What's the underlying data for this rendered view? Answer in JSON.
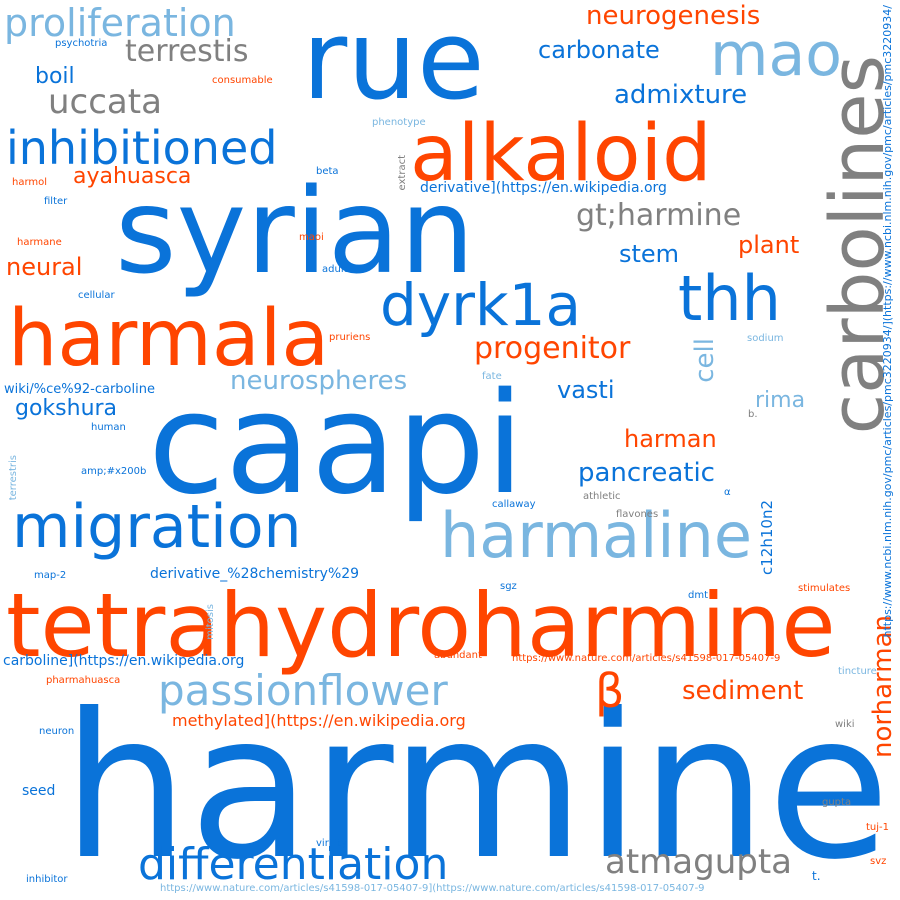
{
  "colors": {
    "blue": "#0a73d9",
    "light_blue": "#7ab6e0",
    "orange": "#ff4500",
    "gray": "#808080"
  },
  "words": [
    {
      "id": "w0",
      "text": "harmine",
      "color": "blue"
    },
    {
      "id": "w1",
      "text": "caapi",
      "color": "blue"
    },
    {
      "id": "w2",
      "text": "syrian",
      "color": "blue"
    },
    {
      "id": "w3",
      "text": "rue",
      "color": "blue"
    },
    {
      "id": "w4",
      "text": "tetrahydroharmine",
      "color": "orange"
    },
    {
      "id": "w5",
      "text": "carbolines",
      "color": "gray"
    },
    {
      "id": "w6",
      "text": "alkaloid",
      "color": "orange"
    },
    {
      "id": "w7",
      "text": "harmala",
      "color": "orange"
    },
    {
      "id": "w8",
      "text": "harmaline",
      "color": "light_blue"
    },
    {
      "id": "w9",
      "text": "migration",
      "color": "blue"
    },
    {
      "id": "w10",
      "text": "thh",
      "color": "blue"
    },
    {
      "id": "w11",
      "text": "dyrk1a",
      "color": "blue"
    },
    {
      "id": "w12",
      "text": "mao",
      "color": "light_blue"
    },
    {
      "id": "w13",
      "text": "inhibitioned",
      "color": "blue"
    },
    {
      "id": "w14",
      "text": "passionflower",
      "color": "light_blue"
    },
    {
      "id": "w15",
      "text": "differentiation",
      "color": "blue"
    },
    {
      "id": "w16",
      "text": "proliferation",
      "color": "light_blue"
    },
    {
      "id": "w17",
      "text": "β",
      "color": "orange"
    },
    {
      "id": "w18",
      "text": "atmagupta",
      "color": "gray"
    },
    {
      "id": "w19",
      "text": "uccata",
      "color": "gray"
    },
    {
      "id": "w20",
      "text": "terrestis",
      "color": "gray"
    },
    {
      "id": "w21",
      "text": "gt;harmine",
      "color": "gray"
    },
    {
      "id": "w22",
      "text": "progenitor",
      "color": "orange"
    },
    {
      "id": "w23",
      "text": "neurospheres",
      "color": "light_blue"
    },
    {
      "id": "w24",
      "text": "norharman",
      "color": "orange"
    },
    {
      "id": "w25",
      "text": "sediment",
      "color": "orange"
    },
    {
      "id": "w26",
      "text": "pancreatic",
      "color": "blue"
    },
    {
      "id": "w27",
      "text": "neurogenesis",
      "color": "orange"
    },
    {
      "id": "w28",
      "text": "carbonate",
      "color": "blue"
    },
    {
      "id": "w29",
      "text": "admixture",
      "color": "blue"
    },
    {
      "id": "w30",
      "text": "ayahuasca",
      "color": "orange"
    },
    {
      "id": "w31",
      "text": "neural",
      "color": "orange"
    },
    {
      "id": "w32",
      "text": "plant",
      "color": "orange"
    },
    {
      "id": "w33",
      "text": "stem",
      "color": "blue"
    },
    {
      "id": "w34",
      "text": "harman",
      "color": "orange"
    },
    {
      "id": "w35",
      "text": "vasti",
      "color": "blue"
    },
    {
      "id": "w36",
      "text": "cell",
      "color": "light_blue"
    },
    {
      "id": "w37",
      "text": "gokshura",
      "color": "blue"
    },
    {
      "id": "w38",
      "text": "rima",
      "color": "light_blue"
    },
    {
      "id": "w39",
      "text": "boil",
      "color": "blue"
    },
    {
      "id": "w40",
      "text": "c12h10n2",
      "color": "blue"
    },
    {
      "id": "w41",
      "text": "methylated](https://en.wikipedia.org",
      "color": "orange"
    },
    {
      "id": "w42",
      "text": "carboline](https://en.wikipedia.org",
      "color": "blue"
    },
    {
      "id": "w43",
      "text": "derivative](https://en.wikipedia.org",
      "color": "blue"
    },
    {
      "id": "w44",
      "text": "wiki/%ce%92-carboline",
      "color": "blue"
    },
    {
      "id": "w45",
      "text": "derivative_%28chemistry%29",
      "color": "blue"
    },
    {
      "id": "w46",
      "text": "https://www.ncbi.nlm.nih.gov/pmc/articles/pmc3220934/](https://www.ncbi.nlm.nih.gov/pmc/articles/pmc3220934/",
      "color": "blue"
    },
    {
      "id": "w47",
      "text": "https://www.nature.com/articles/s41598-017-05407-9",
      "color": "orange"
    },
    {
      "id": "w48",
      "text": "https://www.nature.com/articles/s41598-017-05407-9](https://www.nature.com/articles/s41598-017-05407-9",
      "color": "light_blue"
    },
    {
      "id": "w49",
      "text": "psychotria",
      "color": "blue"
    },
    {
      "id": "w50",
      "text": "consumable",
      "color": "orange"
    },
    {
      "id": "w51",
      "text": "phenotype",
      "color": "light_blue"
    },
    {
      "id": "w52",
      "text": "extract",
      "color": "gray"
    },
    {
      "id": "w53",
      "text": "beta",
      "color": "blue"
    },
    {
      "id": "w54",
      "text": "harmol",
      "color": "orange"
    },
    {
      "id": "w55",
      "text": "filter",
      "color": "blue"
    },
    {
      "id": "w56",
      "text": "harmane",
      "color": "orange"
    },
    {
      "id": "w57",
      "text": "maoi",
      "color": "orange"
    },
    {
      "id": "w58",
      "text": "adult",
      "color": "blue"
    },
    {
      "id": "w59",
      "text": "cellular",
      "color": "blue"
    },
    {
      "id": "w60",
      "text": "pruriens",
      "color": "orange"
    },
    {
      "id": "w61",
      "text": "sodium",
      "color": "light_blue"
    },
    {
      "id": "w62",
      "text": "fate",
      "color": "light_blue"
    },
    {
      "id": "w63",
      "text": "human",
      "color": "blue"
    },
    {
      "id": "w64",
      "text": "b.",
      "color": "gray"
    },
    {
      "id": "w65",
      "text": "terrestris",
      "color": "light_blue"
    },
    {
      "id": "w66",
      "text": "amp;#x200b",
      "color": "blue"
    },
    {
      "id": "w67",
      "text": "athletic",
      "color": "gray"
    },
    {
      "id": "w68",
      "text": "α",
      "color": "blue"
    },
    {
      "id": "w69",
      "text": "callaway",
      "color": "blue"
    },
    {
      "id": "w70",
      "text": "flavones",
      "color": "gray"
    },
    {
      "id": "w71",
      "text": "map-2",
      "color": "blue"
    },
    {
      "id": "w72",
      "text": "sgz",
      "color": "blue"
    },
    {
      "id": "w73",
      "text": "dmt",
      "color": "blue"
    },
    {
      "id": "w74",
      "text": "stimulates",
      "color": "orange"
    },
    {
      "id": "w75",
      "text": "mitosis",
      "color": "light_blue"
    },
    {
      "id": "w76",
      "text": "abundant",
      "color": "orange"
    },
    {
      "id": "w77",
      "text": "pharmahuasca",
      "color": "orange"
    },
    {
      "id": "w78",
      "text": "tincture",
      "color": "light_blue"
    },
    {
      "id": "w79",
      "text": "neuron",
      "color": "blue"
    },
    {
      "id": "w80",
      "text": "wiki",
      "color": "gray"
    },
    {
      "id": "w81",
      "text": "seed",
      "color": "blue"
    },
    {
      "id": "w82",
      "text": "gupta",
      "color": "gray"
    },
    {
      "id": "w83",
      "text": "virility",
      "color": "blue"
    },
    {
      "id": "w84",
      "text": "tuj-1",
      "color": "orange"
    },
    {
      "id": "w85",
      "text": "inhibitor",
      "color": "blue"
    },
    {
      "id": "w86",
      "text": "svz",
      "color": "orange"
    },
    {
      "id": "w87",
      "text": "t.",
      "color": "blue"
    }
  ]
}
